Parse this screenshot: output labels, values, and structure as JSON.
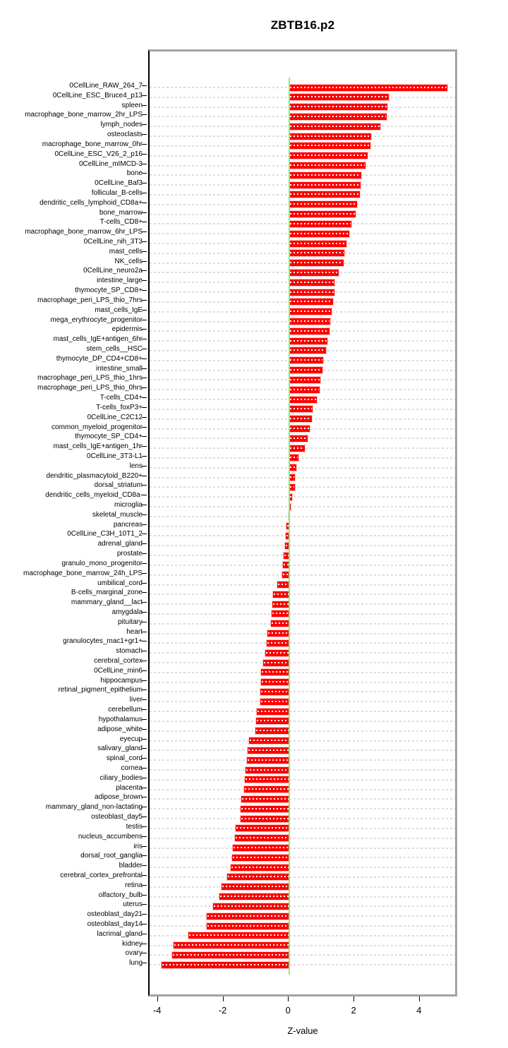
{
  "title": "ZBTB16.p2",
  "colors": {
    "bar": "#ff0000",
    "zero_line": "#7df07d",
    "grid": "#dcdcdc",
    "frame": "#a3a3a3",
    "axis": "#000000"
  },
  "chart_data": {
    "type": "bar",
    "orientation": "horizontal",
    "title": "ZBTB16.p2",
    "xlabel": "Z-value",
    "ylabel": "",
    "xlim": [
      -4.3,
      5.2
    ],
    "xticks": [
      -4,
      -2,
      0,
      2,
      4
    ],
    "grid": "per-row dashed horizontal gridlines",
    "legend": "none",
    "zero_reference_line": 0,
    "categories": [
      "0CellLine_RAW_264_7",
      "0CellLine_ESC_Bruce4_p13",
      "spleen",
      "macrophage_bone_marrow_2hr_LPS",
      "lymph_nodes",
      "osteoclasts",
      "macrophage_bone_marrow_0hr",
      "0CellLine_ESC_V26_2_p16",
      "0CellLine_mIMCD-3",
      "bone",
      "0CellLine_Baf3",
      "follicular_B-cells",
      "dendritic_cells_lymphoid_CD8a+",
      "bone_marrow",
      "T-cells_CD8+",
      "macrophage_bone_marrow_6hr_LPS",
      "0CellLine_nih_3T3",
      "mast_cells",
      "NK_cells",
      "0CellLine_neuro2a",
      "intestine_large",
      "thymocyte_SP_CD8+",
      "macrophage_peri_LPS_thio_7hrs",
      "mast_cells_IgE",
      "mega_erythrocyte_progenitor",
      "epidermis",
      "mast_cells_IgE+antigen_6hr",
      "stem_cells__HSC",
      "thymocyte_DP_CD4+CD8+",
      "intestine_small",
      "macrophage_peri_LPS_thio_1hrs",
      "macrophage_peri_LPS_thio_0hrs",
      "T-cells_CD4+",
      "T-cells_foxP3+",
      "0CellLine_C2C12",
      "common_myeloid_progenitor",
      "thymocyte_SP_CD4+",
      "mast_cells_IgE+antigen_1hr",
      "0CellLine_3T3-L1",
      "lens",
      "dendritic_plasmacytoid_B220+",
      "dorsal_striatum",
      "dendritic_cells_myeloid_CD8a-",
      "microglia",
      "skeletal_muscle",
      "pancreas",
      "0CellLine_C3H_10T1_2",
      "adrenal_gland",
      "prostate",
      "granulo_mono_progenitor",
      "macrophage_bone_marrow_24h_LPS",
      "umbilical_cord",
      "B-cells_marginal_zone",
      "mammary_gland__lact",
      "amygdala",
      "pituitary",
      "heart",
      "granulocytes_mac1+gr1+",
      "stomach",
      "cerebral_cortex",
      "0CellLine_min6",
      "hippocampus",
      "retinal_pigment_epithelium",
      "liver",
      "cerebellum",
      "hypothalamus",
      "adipose_white",
      "eyecup",
      "salivary_gland",
      "spinal_cord",
      "cornea",
      "ciliary_bodies",
      "placenta",
      "adipose_brown",
      "mammary_gland_non-lactating",
      "osteoblast_day5",
      "testis",
      "nucleus_accumbens",
      "iris",
      "dorsal_root_ganglia",
      "bladder",
      "cerebral_cortex_prefrontal",
      "retina",
      "olfactory_bulb",
      "uterus",
      "osteoblast_day21",
      "osteoblast_day14",
      "lacrimal_gland",
      "kidney",
      "ovary",
      "lung"
    ],
    "values": [
      4.82,
      3.03,
      2.98,
      2.97,
      2.77,
      2.49,
      2.47,
      2.39,
      2.32,
      2.2,
      2.18,
      2.14,
      2.06,
      2.01,
      1.88,
      1.83,
      1.74,
      1.68,
      1.66,
      1.51,
      1.38,
      1.37,
      1.34,
      1.29,
      1.25,
      1.22,
      1.16,
      1.12,
      1.02,
      1.01,
      0.94,
      0.91,
      0.83,
      0.71,
      0.68,
      0.62,
      0.55,
      0.47,
      0.27,
      0.2,
      0.17,
      0.16,
      0.09,
      0.03,
      -0.02,
      -0.09,
      -0.11,
      -0.14,
      -0.17,
      -0.2,
      -0.22,
      -0.37,
      -0.51,
      -0.53,
      -0.55,
      -0.56,
      -0.68,
      -0.7,
      -0.73,
      -0.8,
      -0.86,
      -0.87,
      -0.88,
      -0.89,
      -1.0,
      -1.03,
      -1.04,
      -1.24,
      -1.27,
      -1.29,
      -1.34,
      -1.37,
      -1.38,
      -1.48,
      -1.49,
      -1.5,
      -1.65,
      -1.67,
      -1.74,
      -1.76,
      -1.8,
      -1.9,
      -2.07,
      -2.14,
      -2.33,
      -2.52,
      -2.53,
      -3.08,
      -3.54,
      -3.58,
      -3.9
    ]
  }
}
